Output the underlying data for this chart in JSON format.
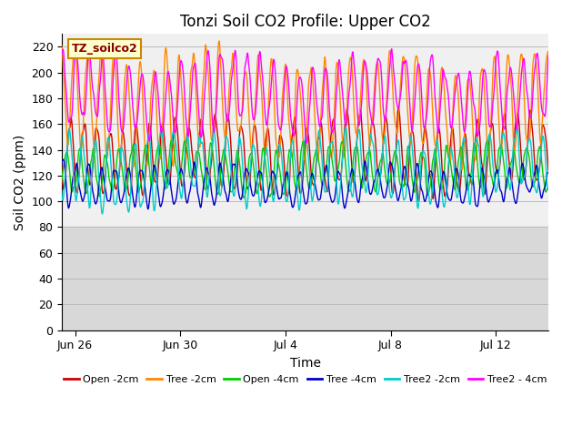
{
  "title": "Tonzi Soil CO2 Profile: Upper CO2",
  "xlabel": "Time",
  "ylabel": "Soil CO2 (ppm)",
  "legend_label": "TZ_soilco2",
  "ylim": [
    0,
    230
  ],
  "yticks": [
    0,
    20,
    40,
    60,
    80,
    100,
    120,
    140,
    160,
    180,
    200,
    220
  ],
  "xtick_labels": [
    "Jun 26",
    "Jun 30",
    "Jul 4",
    "Jul 8",
    "Jul 12"
  ],
  "series": [
    {
      "label": "Open -2cm",
      "color": "#cc0000",
      "lw": 1.0,
      "base": 135,
      "amp": 28,
      "noise_amp": 8,
      "phase": 0.6
    },
    {
      "label": "Tree -2cm",
      "color": "#ff8800",
      "lw": 1.0,
      "base": 175,
      "amp": 38,
      "noise_amp": 10,
      "phase": 0.3
    },
    {
      "label": "Open -4cm",
      "color": "#00cc00",
      "lw": 1.0,
      "base": 125,
      "amp": 18,
      "noise_amp": 6,
      "phase": 0.9
    },
    {
      "label": "Tree -4cm",
      "color": "#0000cc",
      "lw": 1.0,
      "base": 113,
      "amp": 14,
      "noise_amp": 5,
      "phase": 0.2
    },
    {
      "label": "Tree2 -2cm",
      "color": "#00cccc",
      "lw": 1.0,
      "base": 126,
      "amp": 26,
      "noise_amp": 8,
      "phase": 0.7
    },
    {
      "label": "Tree2 - 4cm",
      "color": "#ff00ff",
      "lw": 1.0,
      "base": 183,
      "amp": 28,
      "noise_amp": 9,
      "phase": 0.15
    }
  ],
  "bg_upper_color": "#f0f0f0",
  "bg_lower_color": "#d8d8d8",
  "bg_split": 80,
  "grid_color": "#bbbbbb",
  "title_fontsize": 12,
  "axis_label_fontsize": 10,
  "tick_fontsize": 9,
  "legend_box_color": "#ffffcc",
  "legend_box_edge": "#cc8800"
}
